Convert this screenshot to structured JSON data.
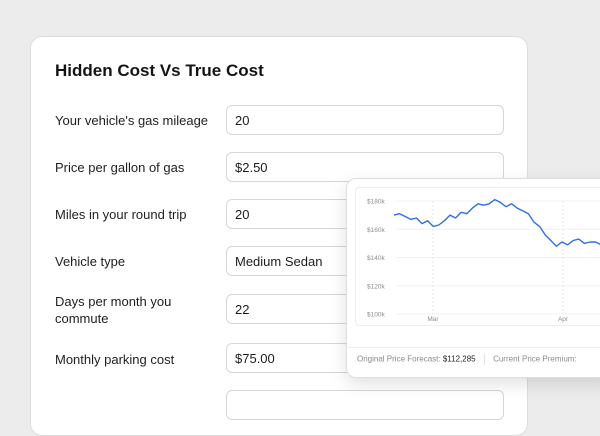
{
  "form": {
    "title": "Hidden Cost Vs True Cost",
    "rows": [
      {
        "label": "Your vehicle's gas mileage",
        "value": "20"
      },
      {
        "label": "Price per gallon of gas",
        "value": "$2.50"
      },
      {
        "label": "Miles in your round trip",
        "value": "20"
      },
      {
        "label": "Vehicle type",
        "value": "Medium Sedan"
      },
      {
        "label": "Days per month you commute",
        "value": "22"
      },
      {
        "label": "Monthly parking cost",
        "value": "$75.00"
      },
      {
        "label": "",
        "value": ""
      }
    ]
  },
  "chart_popup": {
    "footer": {
      "forecast_label": "Original Price Forecast:",
      "forecast_value": "$112,285",
      "premium_label": "Current Price Premium:"
    }
  },
  "chart_data": {
    "type": "line",
    "y_ticks": [
      "$180k",
      "$160k",
      "$140k",
      "$120k",
      "$100k"
    ],
    "x_ticks": [
      "Mar",
      "Apr"
    ],
    "ylim": [
      100000,
      180000
    ],
    "line_color": "#2f6fe0",
    "values": [
      170000,
      171000,
      169000,
      167000,
      168000,
      164000,
      166000,
      162000,
      163000,
      166000,
      170000,
      168000,
      172000,
      171000,
      175000,
      178000,
      177000,
      178000,
      181000,
      179000,
      176000,
      178000,
      175000,
      173000,
      171000,
      165000,
      162000,
      156000,
      152000,
      148000,
      151000,
      149000,
      152000,
      153000,
      150000,
      151000,
      151000,
      149000,
      147000,
      149000,
      146000,
      147000
    ]
  }
}
